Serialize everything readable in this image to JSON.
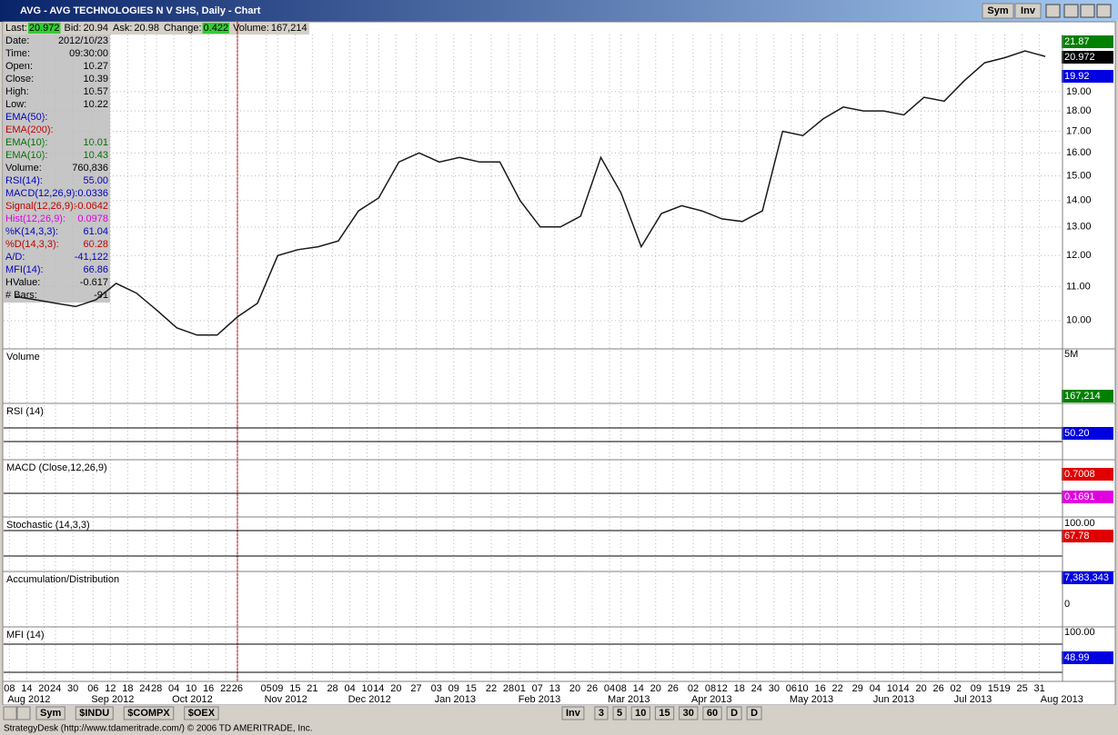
{
  "window": {
    "title": "AVG - AVG TECHNOLOGIES N V SHS, Daily - Chart",
    "buttons": [
      "Sym",
      "Inv"
    ]
  },
  "quote_bar": [
    [
      "Last:",
      "20.972"
    ],
    [
      "Bid:",
      "20.94"
    ],
    [
      "Ask:",
      "20.98"
    ],
    [
      "Change:",
      "0.422"
    ],
    [
      "Volume:",
      "167,214"
    ]
  ],
  "info_panel": {
    "rows": [
      [
        "Date:",
        "2012/10/23"
      ],
      [
        "Time:",
        "09:30:00"
      ],
      [
        "Open:",
        "10.27"
      ],
      [
        "Close:",
        "10.39"
      ],
      [
        "High:",
        "10.57"
      ],
      [
        "Low:",
        "10.22"
      ],
      [
        "EMA(50):"
      ],
      [
        "EMA(200):"
      ],
      [
        "EMA(10):",
        "10.01"
      ],
      [
        "EMA(10):",
        "10.43"
      ],
      [
        "Volume:",
        "760,836"
      ],
      [
        "RSI(14):",
        "55.00"
      ],
      [
        "MACD(12,26,9):",
        "0.0336"
      ],
      [
        "Signal(12,26,9):",
        "-0.0642"
      ],
      [
        "Hist(12,26,9):",
        "0.0978"
      ],
      [
        "%K(14,3,3):",
        "61.04"
      ],
      [
        "%D(14,3,3):",
        "60.28"
      ],
      [
        "A/D:",
        "-41,122"
      ],
      [
        "MFI(14):",
        "66.86"
      ],
      [
        "HValue:",
        "-0.617"
      ],
      [
        "# Bars:",
        "-91"
      ]
    ]
  },
  "price_labels": [
    "21.87",
    "20.972",
    "19.92"
  ],
  "chart_data": {
    "type": "line",
    "log_scale": true,
    "grid": true,
    "x": [
      "2012-08-10",
      "2012-08-17",
      "2012-08-24",
      "2012-08-31",
      "2012-09-07",
      "2012-09-14",
      "2012-09-21",
      "2012-09-28",
      "2012-10-05",
      "2012-10-12",
      "2012-10-19",
      "2012-10-26",
      "2012-11-02",
      "2012-11-09",
      "2012-11-16",
      "2012-11-23",
      "2012-11-30",
      "2012-12-07",
      "2012-12-14",
      "2012-12-21",
      "2012-12-28",
      "2013-01-04",
      "2013-01-11",
      "2013-01-18",
      "2013-01-25",
      "2013-02-01",
      "2013-02-08",
      "2013-02-15",
      "2013-02-22",
      "2013-03-01",
      "2013-03-08",
      "2013-03-15",
      "2013-03-22",
      "2013-03-29",
      "2013-04-05",
      "2013-04-12",
      "2013-04-19",
      "2013-04-26",
      "2013-05-03",
      "2013-05-10",
      "2013-05-17",
      "2013-05-24",
      "2013-05-31",
      "2013-06-07",
      "2013-06-14",
      "2013-06-21",
      "2013-06-28",
      "2013-07-05",
      "2013-07-12",
      "2013-07-19",
      "2013-07-26",
      "2013-08-02"
    ],
    "series": [
      {
        "color": "#1a1a1a",
        "values": [
          10.7,
          10.6,
          10.5,
          10.4,
          10.6,
          11.1,
          10.8,
          10.3,
          9.8,
          9.6,
          9.6,
          10.1,
          10.5,
          12.0,
          12.2,
          12.3,
          12.5,
          13.6,
          14.1,
          15.6,
          16.0,
          15.6,
          15.8,
          15.6,
          15.6,
          14.0,
          13.0,
          13.0,
          13.4,
          15.8,
          14.3,
          12.3,
          13.5,
          13.8,
          13.6,
          13.3,
          13.2,
          13.6,
          17.0,
          16.8,
          17.6,
          18.2,
          18.0,
          18.0,
          17.8,
          18.7,
          18.5,
          19.6,
          20.6,
          20.9,
          21.3,
          20.97
        ]
      }
    ],
    "ylim": [
      9.26,
      22.3
    ],
    "yticks": [
      {
        "value": 10,
        "label": "10.00"
      },
      {
        "value": 11,
        "label": "11.00"
      },
      {
        "value": 12,
        "label": "12.00"
      },
      {
        "value": 13,
        "label": "13.00"
      },
      {
        "value": 14,
        "label": "14.00"
      },
      {
        "value": 15,
        "label": "15.00"
      },
      {
        "value": 16,
        "label": "16.00"
      },
      {
        "value": 17,
        "label": "17.00"
      },
      {
        "value": 18,
        "label": "18.00"
      },
      {
        "value": 19,
        "label": "19.00"
      }
    ],
    "xlim": [
      "2012-08-06",
      "2013-08-08"
    ],
    "xticks": [
      {
        "value": "2012-08-08",
        "label": "08"
      },
      {
        "value": "2012-08-14",
        "label": "14"
      },
      {
        "value": "2012-08-20",
        "label": "20"
      },
      {
        "value": "2012-08-24",
        "label": "24"
      },
      {
        "value": "2012-08-30",
        "label": "30"
      },
      {
        "value": "2012-09-06",
        "label": "06"
      },
      {
        "value": "2012-09-12",
        "label": "12"
      },
      {
        "value": "2012-09-18",
        "label": "18"
      },
      {
        "value": "2012-09-24",
        "label": "24"
      },
      {
        "value": "2012-09-28",
        "label": "28"
      },
      {
        "value": "2012-10-04",
        "label": "04"
      },
      {
        "value": "2012-10-10",
        "label": "10"
      },
      {
        "value": "2012-10-16",
        "label": "16"
      },
      {
        "value": "2012-10-22",
        "label": "22"
      },
      {
        "value": "2012-10-26",
        "label": "26"
      },
      {
        "value": "2012-11-05",
        "label": "05"
      },
      {
        "value": "2012-11-09",
        "label": "09"
      },
      {
        "value": "2012-11-15",
        "label": "15"
      },
      {
        "value": "2012-11-21",
        "label": "21"
      },
      {
        "value": "2012-11-28",
        "label": "28"
      },
      {
        "value": "2012-12-04",
        "label": "04"
      },
      {
        "value": "2012-12-10",
        "label": "10"
      },
      {
        "value": "2012-12-14",
        "label": "14"
      },
      {
        "value": "2012-12-20",
        "label": "20"
      },
      {
        "value": "2012-12-27",
        "label": "27"
      },
      {
        "value": "2013-01-03",
        "label": "03"
      },
      {
        "value": "2013-01-09",
        "label": "09"
      },
      {
        "value": "2013-01-15",
        "label": "15"
      },
      {
        "value": "2013-01-22",
        "label": "22"
      },
      {
        "value": "2013-01-28",
        "label": "28"
      },
      {
        "value": "2013-02-01",
        "label": "01"
      },
      {
        "value": "2013-02-07",
        "label": "07"
      },
      {
        "value": "2013-02-13",
        "label": "13"
      },
      {
        "value": "2013-02-20",
        "label": "20"
      },
      {
        "value": "2013-02-26",
        "label": "26"
      },
      {
        "value": "2013-03-04",
        "label": "04"
      },
      {
        "value": "2013-03-08",
        "label": "08"
      },
      {
        "value": "2013-03-14",
        "label": "14"
      },
      {
        "value": "2013-03-20",
        "label": "20"
      },
      {
        "value": "2013-03-26",
        "label": "26"
      },
      {
        "value": "2013-04-02",
        "label": "02"
      },
      {
        "value": "2013-04-08",
        "label": "08"
      },
      {
        "value": "2013-04-12",
        "label": "12"
      },
      {
        "value": "2013-04-18",
        "label": "18"
      },
      {
        "value": "2013-04-24",
        "label": "24"
      },
      {
        "value": "2013-04-30",
        "label": "30"
      },
      {
        "value": "2013-05-06",
        "label": "06"
      },
      {
        "value": "2013-05-10",
        "label": "10"
      },
      {
        "value": "2013-05-16",
        "label": "16"
      },
      {
        "value": "2013-05-22",
        "label": "22"
      },
      {
        "value": "2013-05-29",
        "label": "29"
      },
      {
        "value": "2013-06-04",
        "label": "04"
      },
      {
        "value": "2013-06-10",
        "label": "10"
      },
      {
        "value": "2013-06-14",
        "label": "14"
      },
      {
        "value": "2013-06-20",
        "label": "20"
      },
      {
        "value": "2013-06-26",
        "label": "26"
      },
      {
        "value": "2013-07-02",
        "label": "02"
      },
      {
        "value": "2013-07-09",
        "label": "09"
      },
      {
        "value": "2013-07-15",
        "label": "15"
      },
      {
        "value": "2013-07-19",
        "label": "19"
      },
      {
        "value": "2013-07-25",
        "label": "25"
      },
      {
        "value": "2013-07-31",
        "label": "31"
      }
    ],
    "x_month_labels": [
      {
        "value": "2012-08-08",
        "label": "Aug 2012"
      },
      {
        "value": "2012-09-06",
        "label": "Sep 2012"
      },
      {
        "value": "2012-10-04",
        "label": "Oct 2012"
      },
      {
        "value": "2012-11-05",
        "label": "Nov 2012"
      },
      {
        "value": "2012-12-04",
        "label": "Dec 2012"
      },
      {
        "value": "2013-01-03",
        "label": "Jan 2013"
      },
      {
        "value": "2013-02-01",
        "label": "Feb 2013"
      },
      {
        "value": "2013-03-04",
        "label": "Mar 2013"
      },
      {
        "value": "2013-04-02",
        "label": "Apr 2013"
      },
      {
        "value": "2013-05-06",
        "label": "May 2013"
      },
      {
        "value": "2013-06-04",
        "label": "Jun 2013"
      },
      {
        "value": "2013-07-02",
        "label": "Jul 2013"
      },
      {
        "value": "2013-08-01",
        "label": "Aug 2013"
      }
    ]
  },
  "panels": [
    {
      "title": "Volume",
      "right_labels": [
        "5M",
        "167,214"
      ]
    },
    {
      "title": "RSI (14)",
      "right_labels": [
        "50.20"
      ]
    },
    {
      "title": "MACD (Close,12,26,9)",
      "right_labels": [
        "0.7008",
        "0.1691"
      ]
    },
    {
      "title": "Stochastic (14,3,3)",
      "right_labels": [
        "100.00",
        "67.78"
      ]
    },
    {
      "title": "Accumulation/Distribution",
      "right_labels": [
        "7,383,343",
        "0"
      ]
    },
    {
      "title": "MFI (14)",
      "right_labels": [
        "100.00",
        "48.99"
      ]
    }
  ],
  "toolbar": {
    "left": [
      "Sym",
      "$INDU",
      "$COMPX",
      "$OEX"
    ],
    "right": [
      "Inv",
      "3",
      "5",
      "10",
      "15",
      "30",
      "60",
      "D",
      "D"
    ]
  },
  "status": "StrategyDesk (http://www.tdameritrade.com/) © 2006 TD AMERITRADE, Inc."
}
